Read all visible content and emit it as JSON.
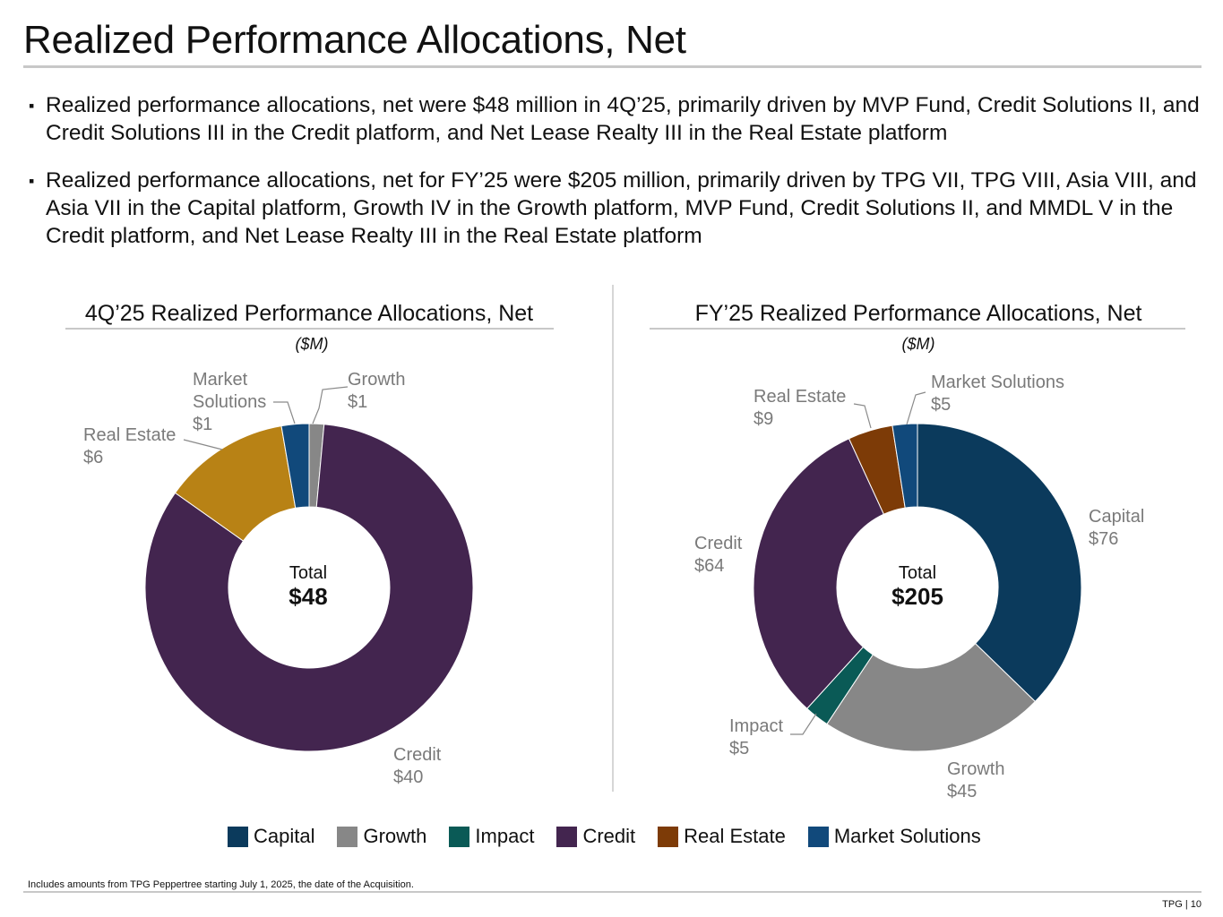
{
  "page": {
    "title": "Realized Performance Allocations, Net",
    "bullets": [
      "Realized performance allocations, net were $48 million in 4Q’25, primarily driven by MVP Fund, Credit Solutions II, and Credit Solutions III in the Credit platform, and Net Lease Realty III in the Real Estate platform",
      "Realized performance allocations, net for FY’25 were $205 million, primarily driven by TPG VII, TPG VIII, Asia VIII, and Asia VII in the Capital platform, Growth IV in the Growth platform, MVP Fund, Credit Solutions II, and MMDL V in the Credit platform, and Net Lease Realty III in the Real Estate platform"
    ],
    "footnote": "Includes amounts from TPG Peppertree starting July 1, 2025, the date of the Acquisition.",
    "page_number": "TPG | 10"
  },
  "colors": {
    "Capital": "#0b3a5c",
    "Growth": "#878787",
    "Impact": "#0a5a56",
    "Credit": "#43254f",
    "Real Estate": "#7d3b07",
    "Market Solutions": "#11497b",
    "Real Estate 4Q": "#b88215"
  },
  "legend": [
    "Capital",
    "Growth",
    "Impact",
    "Credit",
    "Real Estate",
    "Market Solutions"
  ],
  "chart_data": [
    {
      "type": "pie",
      "title": "4Q’25 Realized Performance Allocations, Net",
      "unit": "($M)",
      "total_label": "Total",
      "total_value": "$48",
      "slices": [
        {
          "name": "Growth",
          "value": 0.7,
          "label": "$1"
        },
        {
          "name": "Credit",
          "value": 40,
          "label": "$40"
        },
        {
          "name": "Real Estate",
          "value": 6,
          "label": "$6"
        },
        {
          "name": "Market Solutions",
          "value": 1.3,
          "label": "$1"
        }
      ]
    },
    {
      "type": "pie",
      "title": "FY’25 Realized Performance Allocations, Net",
      "unit": "($M)",
      "total_label": "Total",
      "total_value": "$205",
      "slices": [
        {
          "name": "Capital",
          "value": 76,
          "label": "$76"
        },
        {
          "name": "Growth",
          "value": 45,
          "label": "$45"
        },
        {
          "name": "Impact",
          "value": 5,
          "label": "$5"
        },
        {
          "name": "Credit",
          "value": 64,
          "label": "$64"
        },
        {
          "name": "Real Estate",
          "value": 9,
          "label": "$9"
        },
        {
          "name": "Market Solutions",
          "value": 5,
          "label": "$5"
        }
      ]
    }
  ]
}
